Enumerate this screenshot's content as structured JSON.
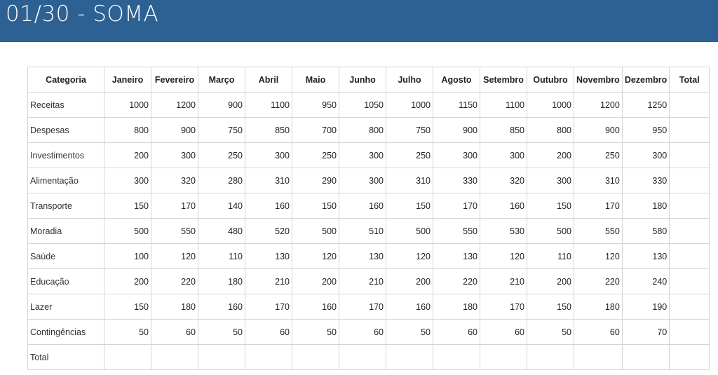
{
  "banner": {
    "title": "01/30 - SOMA"
  },
  "table": {
    "headers": [
      "Categoria",
      "Janeiro",
      "Fevereiro",
      "Março",
      "Abril",
      "Maio",
      "Junho",
      "Julho",
      "Agosto",
      "Setembro",
      "Outubro",
      "Novembro",
      "Dezembro",
      "Total"
    ],
    "rows": [
      {
        "category": "Receitas",
        "values": [
          "1000",
          "1200",
          "900",
          "1100",
          "950",
          "1050",
          "1000",
          "1150",
          "1100",
          "1000",
          "1200",
          "1250"
        ],
        "total": ""
      },
      {
        "category": "Despesas",
        "values": [
          "800",
          "900",
          "750",
          "850",
          "700",
          "800",
          "750",
          "900",
          "850",
          "800",
          "900",
          "950"
        ],
        "total": ""
      },
      {
        "category": "Investimentos",
        "values": [
          "200",
          "300",
          "250",
          "300",
          "250",
          "300",
          "250",
          "300",
          "300",
          "200",
          "250",
          "300"
        ],
        "total": ""
      },
      {
        "category": "Alimentação",
        "values": [
          "300",
          "320",
          "280",
          "310",
          "290",
          "300",
          "310",
          "330",
          "320",
          "300",
          "310",
          "330"
        ],
        "total": ""
      },
      {
        "category": "Transporte",
        "values": [
          "150",
          "170",
          "140",
          "160",
          "150",
          "160",
          "150",
          "170",
          "160",
          "150",
          "170",
          "180"
        ],
        "total": ""
      },
      {
        "category": "Moradia",
        "values": [
          "500",
          "550",
          "480",
          "520",
          "500",
          "510",
          "500",
          "550",
          "530",
          "500",
          "550",
          "580"
        ],
        "total": ""
      },
      {
        "category": "Saúde",
        "values": [
          "100",
          "120",
          "110",
          "130",
          "120",
          "130",
          "120",
          "130",
          "120",
          "110",
          "120",
          "130"
        ],
        "total": ""
      },
      {
        "category": "Educação",
        "values": [
          "200",
          "220",
          "180",
          "210",
          "200",
          "210",
          "200",
          "220",
          "210",
          "200",
          "220",
          "240"
        ],
        "total": ""
      },
      {
        "category": "Lazer",
        "values": [
          "150",
          "180",
          "160",
          "170",
          "160",
          "170",
          "160",
          "180",
          "170",
          "150",
          "180",
          "190"
        ],
        "total": ""
      },
      {
        "category": "Contingências",
        "values": [
          "50",
          "60",
          "50",
          "60",
          "50",
          "60",
          "50",
          "60",
          "60",
          "50",
          "60",
          "70"
        ],
        "total": ""
      },
      {
        "category": "Total",
        "values": [
          "",
          "",
          "",
          "",
          "",
          "",
          "",
          "",
          "",
          "",
          "",
          ""
        ],
        "total": ""
      }
    ]
  }
}
